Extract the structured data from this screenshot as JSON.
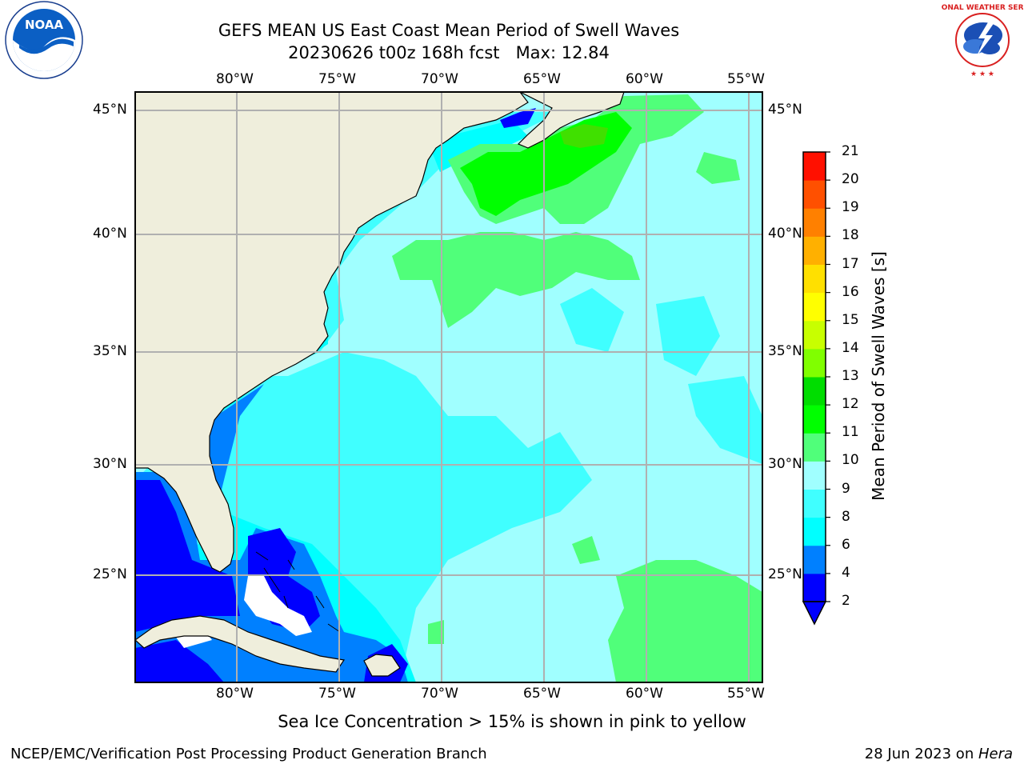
{
  "header": {
    "title_line1": "GEFS MEAN US East Coast Mean Period of Swell Waves",
    "title_line2": "20230626 t00z 168h fcst   Max: 12.84"
  },
  "map": {
    "lon_labels": [
      "80°W",
      "75°W",
      "70°W",
      "65°W",
      "60°W",
      "55°W"
    ],
    "lat_labels": [
      "45°N",
      "40°N",
      "35°N",
      "30°N",
      "25°N"
    ],
    "colors": {
      "land": "#efeedc",
      "grid": "#b0b0b0",
      "c_2_4": "#0000ff",
      "c_4_6": "#0080ff",
      "c_6_8": "#00ffff",
      "c_8_9": "#40ffff",
      "c_9_10": "#a0ffff",
      "c_10_11": "#50ff7a",
      "c_11_12": "#00ff00"
    }
  },
  "colorbar": {
    "label": "Mean Period of Swell Waves [s]",
    "ticks": [
      "2",
      "4",
      "6",
      "8",
      "9",
      "10",
      "11",
      "12",
      "13",
      "14",
      "15",
      "16",
      "17",
      "18",
      "19",
      "20",
      "21"
    ],
    "colors": [
      "#0000ff",
      "#0080ff",
      "#00ffff",
      "#40ffff",
      "#a0ffff",
      "#50ff7a",
      "#00ff00",
      "#00dd00",
      "#80ff00",
      "#c8ff00",
      "#ffff00",
      "#ffe000",
      "#ffb000",
      "#ff8000",
      "#ff5000",
      "#ff1000"
    ],
    "under_color": "#0000ff"
  },
  "footer": {
    "sea_ice_note": "Sea Ice Concentration > 15% is shown in pink to yellow",
    "left": "NCEP/EMC/Verification Post Processing Product Generation Branch",
    "right_prefix": "28 Jun 2023 on ",
    "right_host": "Hera"
  },
  "logos": {
    "noaa_text": "NOAA",
    "nws_text": "NATIONAL WEATHER SERVICE"
  }
}
